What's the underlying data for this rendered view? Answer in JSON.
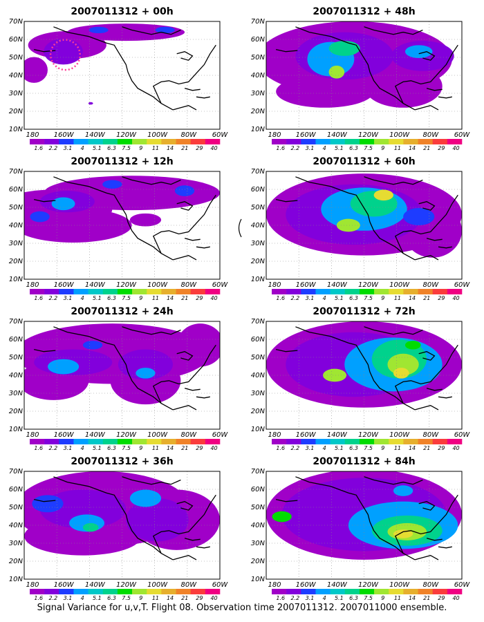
{
  "chart_data": [
    {
      "type": "heatmap",
      "title": "2007011312 + 00h",
      "xlim": [
        "180",
        "60W"
      ],
      "ylim": [
        "10N",
        "70N"
      ],
      "grid": true,
      "contour_levels": [
        "1.6",
        "2.2",
        "3.1",
        "4",
        "5.1",
        "6.3",
        "7.5",
        "9",
        "11",
        "14",
        "21",
        "29",
        "40"
      ],
      "annotation": "dotted red observation region"
    },
    {
      "type": "heatmap",
      "title": "2007011312 + 12h",
      "xlim": [
        "180",
        "60W"
      ],
      "ylim": [
        "10N",
        "70N"
      ],
      "grid": true,
      "contour_levels": [
        "1.6",
        "2.2",
        "3.1",
        "4",
        "5.1",
        "6.3",
        "7.5",
        "9",
        "11",
        "14",
        "21",
        "29",
        "40"
      ]
    },
    {
      "type": "heatmap",
      "title": "2007011312 + 24h",
      "xlim": [
        "180",
        "60W"
      ],
      "ylim": [
        "10N",
        "70N"
      ],
      "grid": true,
      "contour_levels": [
        "1.6",
        "2.2",
        "3.1",
        "4",
        "5.1",
        "6.3",
        "7.5",
        "9",
        "11",
        "14",
        "21",
        "29",
        "40"
      ]
    },
    {
      "type": "heatmap",
      "title": "2007011312 + 36h",
      "xlim": [
        "180",
        "60W"
      ],
      "ylim": [
        "10N",
        "70N"
      ],
      "grid": true,
      "contour_levels": [
        "1.6",
        "2.2",
        "3.1",
        "4",
        "5.1",
        "6.3",
        "7.5",
        "9",
        "11",
        "14",
        "21",
        "29",
        "40"
      ]
    },
    {
      "type": "heatmap",
      "title": "2007011312 + 48h",
      "xlim": [
        "180",
        "60W"
      ],
      "ylim": [
        "10N",
        "70N"
      ],
      "grid": true,
      "contour_levels": [
        "1.6",
        "2.2",
        "3.1",
        "4",
        "5.1",
        "6.3",
        "7.5",
        "9",
        "11",
        "14",
        "21",
        "29",
        "40"
      ]
    },
    {
      "type": "heatmap",
      "title": "2007011312 + 60h",
      "xlim": [
        "180",
        "60W"
      ],
      "ylim": [
        "10N",
        "70N"
      ],
      "grid": true,
      "contour_levels": [
        "1.6",
        "2.2",
        "3.1",
        "4",
        "5.1",
        "6.3",
        "7.5",
        "9",
        "11",
        "14",
        "21",
        "29",
        "40"
      ]
    },
    {
      "type": "heatmap",
      "title": "2007011312 + 72h",
      "xlim": [
        "180",
        "60W"
      ],
      "ylim": [
        "10N",
        "70N"
      ],
      "grid": true,
      "contour_levels": [
        "1.6",
        "2.2",
        "3.1",
        "4",
        "5.1",
        "6.3",
        "7.5",
        "9",
        "11",
        "14",
        "21",
        "29",
        "40"
      ]
    },
    {
      "type": "heatmap",
      "title": "2007011312 + 84h",
      "xlim": [
        "180",
        "60W"
      ],
      "ylim": [
        "10N",
        "70N"
      ],
      "grid": true,
      "contour_levels": [
        "1.6",
        "2.2",
        "3.1",
        "4",
        "5.1",
        "6.3",
        "7.5",
        "9",
        "11",
        "14",
        "21",
        "29",
        "40"
      ]
    }
  ],
  "x_ticks": [
    "180",
    "160W",
    "140W",
    "120W",
    "100W",
    "80W",
    "60W"
  ],
  "y_ticks": [
    "70N",
    "60N",
    "50N",
    "40N",
    "30N",
    "20N",
    "10N"
  ],
  "colorbar": {
    "labels": [
      "1.6",
      "2.2",
      "3.1",
      "4",
      "5.1",
      "6.3",
      "7.5",
      "9",
      "11",
      "14",
      "21",
      "29",
      "40"
    ],
    "colors": [
      "#a000c8",
      "#8200dc",
      "#1e3cff",
      "#00a0ff",
      "#00c8c8",
      "#00d28c",
      "#00dc00",
      "#a0e632",
      "#e6dc32",
      "#e6af2d",
      "#f08228",
      "#fa3c3c",
      "#f00082"
    ]
  },
  "background_color": "#ffffff",
  "caption": "Signal Variance for u,v,T. Flight 08. Observation time 2007011312. 2007011000 ensemble."
}
